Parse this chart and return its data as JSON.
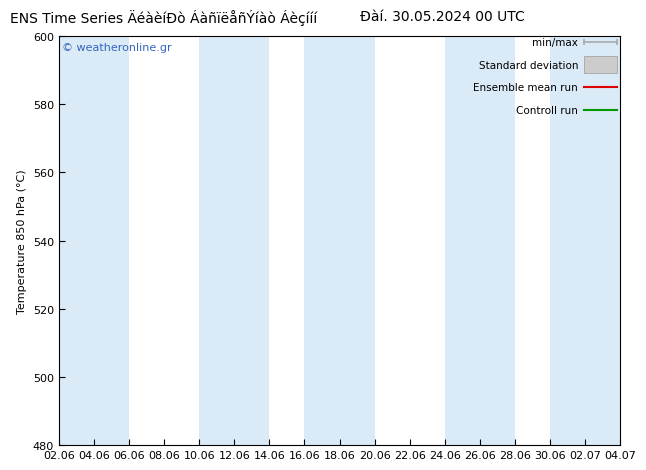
{
  "title_left": "ENS Time Series ÄéàèíÐò ÁàñïëåñÝíàò Áèçííí",
  "title_right": "Ðàí. 30.05.2024 00 UTC",
  "ylabel": "Temperature 850 hPa (°C)",
  "ylim": [
    480,
    600
  ],
  "yticks": [
    480,
    500,
    520,
    540,
    560,
    580,
    600
  ],
  "x_labels": [
    "02.06",
    "04.06",
    "06.06",
    "08.06",
    "10.06",
    "12.06",
    "14.06",
    "16.06",
    "18.06",
    "20.06",
    "22.06",
    "24.06",
    "26.06",
    "28.06",
    "30.06",
    "02.07",
    "04.07"
  ],
  "n_xticks": 17,
  "bg_color": "#ffffff",
  "plot_bg_color": "#ffffff",
  "band_color": "#daeaf7",
  "watermark": "© weatheronline.gr",
  "watermark_color": "#3366bb",
  "legend_labels": [
    "min/max",
    "Standard deviation",
    "Ensemble mean run",
    "Controll run"
  ],
  "legend_line_colors": [
    "#aaaaaa",
    "#bbbbbb",
    "#dd0000",
    "#009900"
  ],
  "title_fontsize": 10,
  "tick_fontsize": 8,
  "ylabel_fontsize": 8,
  "spine_color": "#000000"
}
